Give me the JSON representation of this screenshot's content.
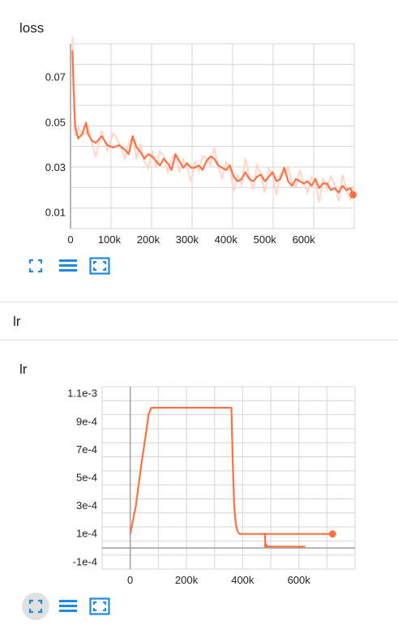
{
  "colors": {
    "line": "#ff7043",
    "raw": "#ffccbc",
    "grid": "#d5d5d5",
    "axis": "#9e9e9e",
    "icon": "#1e88e5"
  },
  "loss_card": {
    "title": "loss"
  },
  "section": {
    "label": "lr"
  },
  "lr_card": {
    "title": "lr"
  },
  "toolbar_icons": [
    "fullscreen-icon",
    "list-icon",
    "fit-domain-icon"
  ],
  "chart_data": [
    {
      "type": "line",
      "title": "loss",
      "xlim": [
        0,
        730000
      ],
      "ylim": [
        0.003,
        0.085
      ],
      "x_ticks": [
        0,
        100000,
        200000,
        300000,
        400000,
        500000,
        600000
      ],
      "x_tick_labels": [
        "0",
        "100k",
        "200k",
        "300k",
        "400k",
        "500k",
        "600k"
      ],
      "y_ticks": [
        0.01,
        0.03,
        0.05,
        0.07
      ],
      "y_tick_labels": [
        "0.01",
        "0.03",
        "0.05",
        "0.07"
      ],
      "grid": true,
      "series": [
        {
          "style": "smoothed",
          "x": [
            5000,
            8000,
            12000,
            20000,
            30000,
            40000,
            45000,
            55000,
            65000,
            80000,
            95000,
            110000,
            125000,
            140000,
            150000,
            160000,
            170000,
            180000,
            190000,
            200000,
            210000,
            220000,
            230000,
            240000,
            250000,
            260000,
            270000,
            280000,
            290000,
            300000,
            310000,
            320000,
            330000,
            340000,
            350000,
            360000,
            370000,
            380000,
            390000,
            400000,
            410000,
            420000,
            430000,
            440000,
            450000,
            460000,
            470000,
            480000,
            490000,
            500000,
            510000,
            520000,
            530000,
            540000,
            550000,
            560000,
            570000,
            580000,
            590000,
            600000,
            610000,
            620000,
            630000,
            640000,
            650000,
            660000,
            670000,
            680000,
            690000,
            700000,
            710000,
            720000,
            727000
          ],
          "y": [
            0.082,
            0.065,
            0.048,
            0.043,
            0.045,
            0.05,
            0.045,
            0.042,
            0.041,
            0.044,
            0.04,
            0.039,
            0.04,
            0.038,
            0.036,
            0.044,
            0.039,
            0.037,
            0.034,
            0.036,
            0.035,
            0.033,
            0.031,
            0.034,
            0.032,
            0.029,
            0.036,
            0.033,
            0.03,
            0.032,
            0.03,
            0.03,
            0.031,
            0.029,
            0.033,
            0.035,
            0.034,
            0.031,
            0.03,
            0.029,
            0.031,
            0.026,
            0.024,
            0.025,
            0.028,
            0.025,
            0.024,
            0.026,
            0.027,
            0.024,
            0.026,
            0.028,
            0.024,
            0.025,
            0.03,
            0.024,
            0.022,
            0.025,
            0.024,
            0.023,
            0.024,
            0.022,
            0.025,
            0.021,
            0.023,
            0.023,
            0.02,
            0.021,
            0.019,
            0.022,
            0.02,
            0.021,
            0.018
          ]
        }
      ]
    },
    {
      "type": "line",
      "title": "lr",
      "xlim": [
        -100000,
        800000
      ],
      "ylim": [
        -0.00015,
        0.00115
      ],
      "x_ticks": [
        0,
        200000,
        400000,
        600000
      ],
      "x_tick_labels": [
        "0",
        "200k",
        "400k",
        "600k"
      ],
      "y_ticks": [
        0.0011,
        0.0009,
        0.0007,
        0.0005,
        0.0003,
        0.0001,
        -0.0001
      ],
      "y_tick_labels": [
        "1.1e-3",
        "9e-4",
        "7e-4",
        "5e-4",
        "3e-4",
        "1e-4",
        "-1e-4"
      ],
      "grid": true,
      "series": [
        {
          "style": "smoothed",
          "x": [
            0,
            20000,
            40000,
            55000,
            65000,
            75000,
            90000,
            150000,
            250000,
            360000,
            365000,
            370000,
            375000,
            380000,
            385000,
            390000,
            400000,
            420000,
            450000,
            480000,
            480000,
            485000,
            490000,
            510000,
            540000,
            570000,
            600000,
            620000,
            620000,
            480000,
            480000,
            500000,
            550000,
            600000,
            650000,
            700000,
            720000
          ],
          "y": [
            0.0001,
            0.0003,
            0.0006,
            0.0008,
            0.00095,
            0.001,
            0.001,
            0.001,
            0.001,
            0.001,
            0.0006,
            0.0003,
            0.00018,
            0.00013,
            0.00011,
            0.0001,
            0.0001,
            0.0001,
            0.0001,
            0.0001,
            4e-05,
            2e-05,
            1e-05,
            1e-05,
            1e-05,
            1e-05,
            1e-05,
            1e-05,
            1e-05,
            1e-05,
            0.0001,
            0.0001,
            0.0001,
            0.0001,
            0.0001,
            0.0001,
            0.0001
          ]
        }
      ]
    }
  ]
}
